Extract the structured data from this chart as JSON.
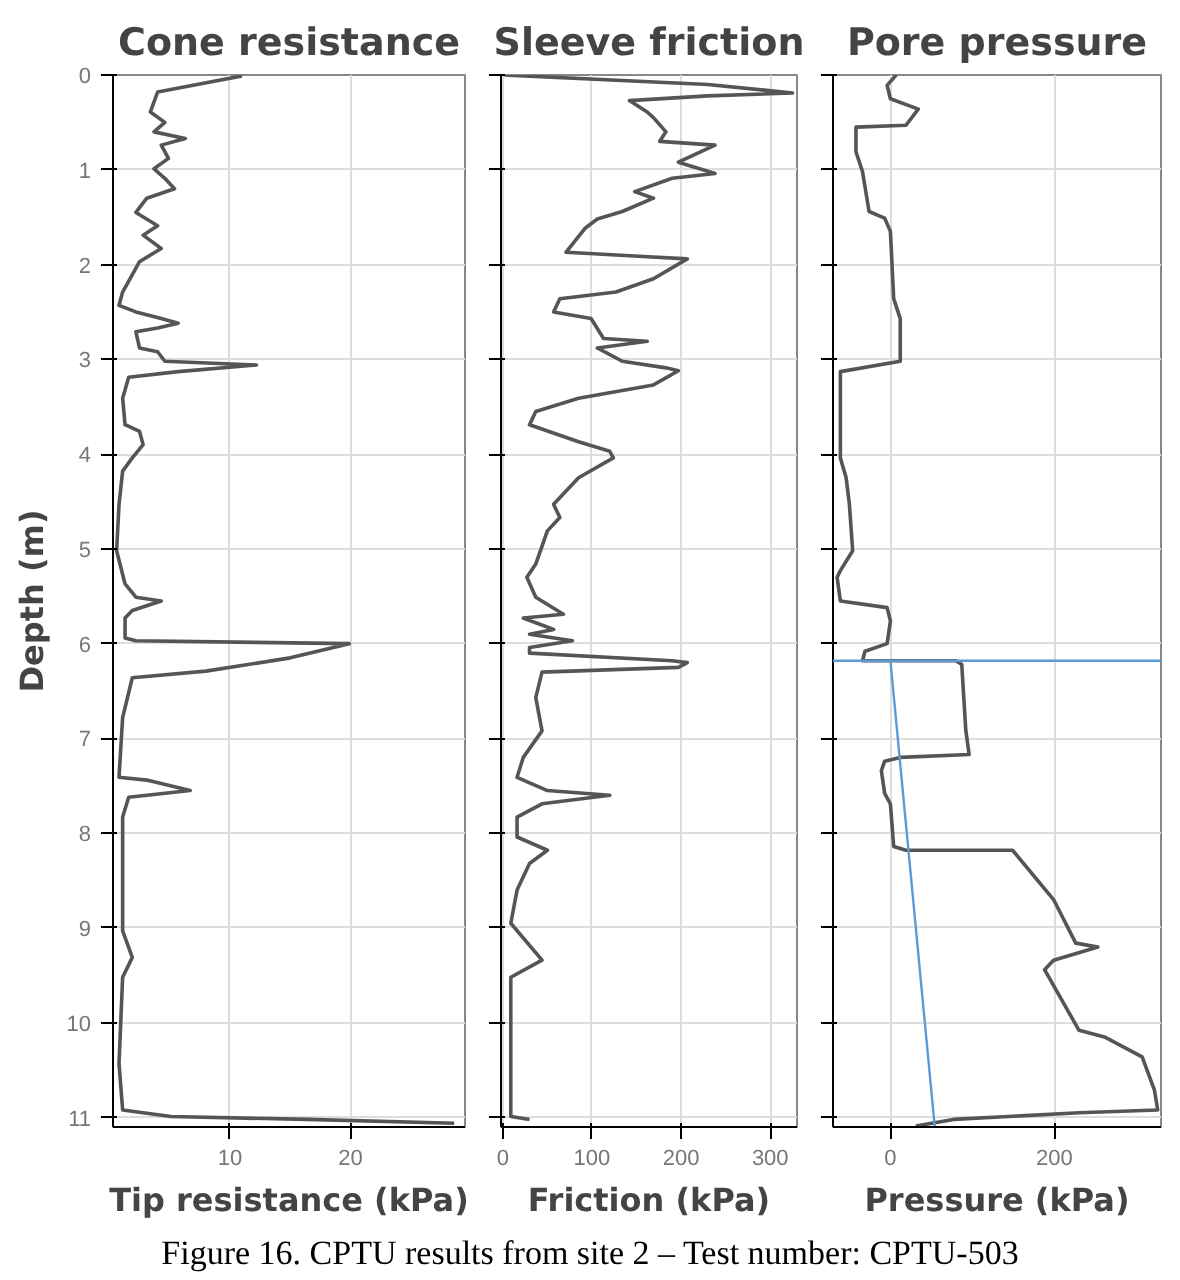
{
  "chart_data": [
    {
      "type": "line",
      "title": "Cone resistance",
      "xlabel": "Tip resistance (kPa)",
      "ylabel": "Depth (m)",
      "xlim": [
        0.3,
        29.5
      ],
      "xticks": [
        10,
        20
      ],
      "ylim": [
        11.1,
        0
      ],
      "yticks": [
        0,
        1,
        2,
        3,
        4,
        5,
        6,
        7,
        8,
        9,
        10,
        11
      ],
      "grid": true,
      "series": [
        {
          "color": "#555555",
          "x": [
            11.0,
            4.0,
            3.4,
            4.6,
            3.7,
            6.3,
            4.3,
            4.9,
            3.7,
            4.6,
            5.4,
            3.1,
            2.2,
            4.0,
            2.8,
            4.3,
            2.5,
            1.1,
            0.8,
            2.2,
            4.3,
            5.7,
            4.0,
            2.2,
            2.5,
            4.0,
            4.6,
            12.2,
            5.7,
            1.6,
            1.1,
            1.3,
            2.5,
            2.8,
            1.9,
            1.1,
            0.8,
            0.6,
            1.3,
            2.2,
            4.3,
            1.9,
            1.3,
            1.3,
            2.2,
            19.9,
            15,
            8,
            1.9,
            1.1,
            0.8,
            3.1,
            6.7,
            1.6,
            1.1,
            1.1,
            1.9,
            1.1,
            0.8,
            1.1,
            5.1,
            16.4,
            28.6
          ],
          "values": [
            0.01,
            0.18,
            0.39,
            0.5,
            0.6,
            0.67,
            0.74,
            0.88,
            0.99,
            1.09,
            1.2,
            1.3,
            1.45,
            1.59,
            1.69,
            1.83,
            1.97,
            2.29,
            2.43,
            2.5,
            2.57,
            2.62,
            2.67,
            2.71,
            2.88,
            2.92,
            3.02,
            3.06,
            3.13,
            3.19,
            3.41,
            3.69,
            3.76,
            3.9,
            4.04,
            4.18,
            4.53,
            5.02,
            5.37,
            5.51,
            5.55,
            5.65,
            5.73,
            5.94,
            5.97,
            6.0,
            6.15,
            6.29,
            6.36,
            6.78,
            7.41,
            7.44,
            7.55,
            7.62,
            7.83,
            9.03,
            9.31,
            9.52,
            10.43,
            10.92,
            10.99,
            11.02,
            11.06
          ]
        }
      ]
    },
    {
      "type": "line",
      "title": "Sleeve friction",
      "xlabel": "Friction (kPa)",
      "xlim": [
        -2,
        330
      ],
      "xticks": [
        0,
        100,
        200,
        300
      ],
      "ylim": [
        11.1,
        0
      ],
      "yticks": [
        {
          "value": 0,
          "label": null
        },
        {
          "value": 1,
          "label": null
        },
        {
          "value": 2,
          "label": null
        },
        {
          "value": 3,
          "label": null
        },
        {
          "value": 4,
          "label": null
        },
        {
          "value": 5,
          "label": null
        },
        {
          "value": 6,
          "label": null
        },
        {
          "value": 7,
          "label": null
        },
        {
          "value": 8,
          "label": null
        },
        {
          "value": 9,
          "label": null
        },
        {
          "value": 10,
          "label": null
        },
        {
          "value": 11,
          "label": null
        }
      ],
      "grid": true,
      "tick_labels": "x",
      "series": [
        {
          "color": "#555555",
          "x": [
            2,
            230,
            325,
            230,
            142,
            162,
            169,
            183,
            176,
            238,
            197,
            238,
            190,
            148,
            169,
            134,
            106,
            92,
            71,
            127,
            207,
            169,
            127,
            64,
            57,
            99,
            113,
            162,
            106,
            134,
            183,
            197,
            169,
            85,
            37,
            30,
            85,
            120,
            124,
            85,
            57,
            64,
            50,
            37,
            27,
            37,
            68,
            23,
            37,
            57,
            30,
            78,
            30,
            30,
            190,
            207,
            197,
            44,
            37,
            44,
            23,
            16,
            50,
            120,
            44,
            16,
            16,
            50,
            30,
            16,
            9,
            44,
            9,
            9,
            30
          ],
          "values": [
            0,
            0.1,
            0.19,
            0.22,
            0.27,
            0.39,
            0.45,
            0.6,
            0.7,
            0.74,
            0.92,
            1.04,
            1.09,
            1.23,
            1.3,
            1.44,
            1.52,
            1.62,
            1.87,
            1.9,
            1.94,
            2.15,
            2.29,
            2.36,
            2.5,
            2.57,
            2.78,
            2.81,
            2.88,
            3.02,
            3.09,
            3.12,
            3.27,
            3.41,
            3.55,
            3.69,
            3.87,
            3.97,
            4.04,
            4.25,
            4.53,
            4.67,
            4.81,
            5.16,
            5.3,
            5.51,
            5.69,
            5.73,
            5.78,
            5.85,
            5.9,
            5.97,
            6.04,
            6.1,
            6.18,
            6.2,
            6.25,
            6.3,
            6.57,
            6.92,
            7.2,
            7.41,
            7.55,
            7.6,
            7.69,
            7.83,
            8.04,
            8.18,
            8.32,
            8.6,
            8.95,
            9.34,
            9.52,
            10.99,
            11.02
          ]
        }
      ]
    },
    {
      "type": "line",
      "title": "Pore pressure",
      "xlabel": "Pressure (kPa)",
      "xlim": [
        -70,
        330
      ],
      "xticks": [
        0,
        200
      ],
      "ylim": [
        11.1,
        0
      ],
      "yticks": [
        {
          "value": 0,
          "label": null
        },
        {
          "value": 1,
          "label": null
        },
        {
          "value": 2,
          "label": null
        },
        {
          "value": 3,
          "label": null
        },
        {
          "value": 4,
          "label": null
        },
        {
          "value": 5,
          "label": null
        },
        {
          "value": 6,
          "label": null
        },
        {
          "value": 7,
          "label": null
        },
        {
          "value": 8,
          "label": null
        },
        {
          "value": 9,
          "label": null
        },
        {
          "value": 10,
          "label": null
        },
        {
          "value": 11,
          "label": null
        }
      ],
      "grid": true,
      "tick_labels": "x",
      "ref_lines": [
        {
          "axis": "y",
          "value": 6.18,
          "color": "#5b9bd5"
        }
      ],
      "annotations": [
        "Figure 16. CPTU results from site 2 – Test number: CPTU-503"
      ],
      "series": [
        {
          "color": "#555555",
          "x": [
            7,
            -4,
            0,
            34,
            19,
            -42,
            -42,
            -34,
            -26,
            -7,
            0,
            4,
            12,
            12,
            -61,
            -61,
            -54,
            -50,
            -46,
            -61,
            -65,
            -61,
            -4,
            0,
            -4,
            -31,
            -34,
            80,
            87,
            92,
            96,
            12,
            -7,
            -11,
            -7,
            0,
            4,
            19,
            149,
            199,
            226,
            253,
            199,
            188,
            230,
            261,
            307,
            322,
            326,
            230,
            77,
            31
          ],
          "values": [
            0,
            0.11,
            0.25,
            0.36,
            0.53,
            0.55,
            0.81,
            1.02,
            1.44,
            1.51,
            1.65,
            2.36,
            2.57,
            3.02,
            3.13,
            4.04,
            4.25,
            4.53,
            5.02,
            5.23,
            5.3,
            5.55,
            5.62,
            5.76,
            6.0,
            6.08,
            6.18,
            6.18,
            6.22,
            6.92,
            7.17,
            7.2,
            7.24,
            7.34,
            7.58,
            7.69,
            8.14,
            8.18,
            8.18,
            8.7,
            9.16,
            9.2,
            9.34,
            9.44,
            10.08,
            10.15,
            10.36,
            10.71,
            10.92,
            10.95,
            11.02,
            11.09
          ]
        },
        {
          "color": "#5b9bd5",
          "x": [
            0,
            54
          ],
          "values": [
            6.18,
            11.09
          ]
        }
      ]
    }
  ]
}
